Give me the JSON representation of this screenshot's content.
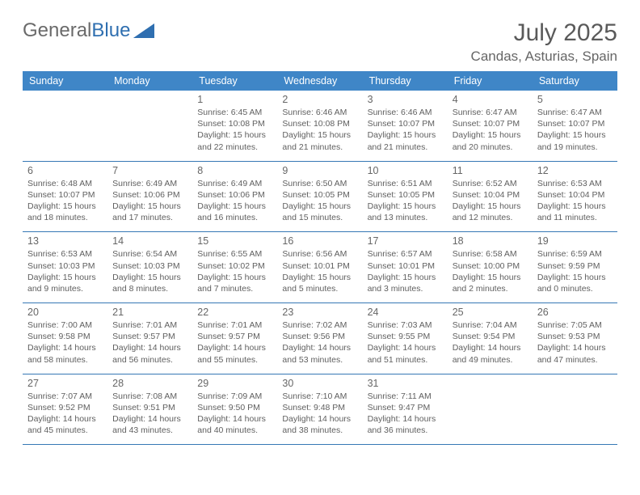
{
  "brand": {
    "text_a": "General",
    "text_b": "Blue",
    "text_a_color": "#6a6a6a",
    "text_b_color": "#2f6fb0",
    "shape_color": "#2f6fb0"
  },
  "title": "July 2025",
  "location": "Candas, Asturias, Spain",
  "colors": {
    "header_bg": "#3f86c7",
    "header_text": "#ffffff",
    "divider": "#3678b5",
    "body_text": "#5f5f5f",
    "page_bg": "#ffffff"
  },
  "day_names": [
    "Sunday",
    "Monday",
    "Tuesday",
    "Wednesday",
    "Thursday",
    "Friday",
    "Saturday"
  ],
  "weeks": [
    [
      {
        "n": "",
        "sr": "",
        "ss": "",
        "dl": ""
      },
      {
        "n": "",
        "sr": "",
        "ss": "",
        "dl": ""
      },
      {
        "n": "1",
        "sr": "6:45 AM",
        "ss": "10:08 PM",
        "dl": "15 hours and 22 minutes."
      },
      {
        "n": "2",
        "sr": "6:46 AM",
        "ss": "10:08 PM",
        "dl": "15 hours and 21 minutes."
      },
      {
        "n": "3",
        "sr": "6:46 AM",
        "ss": "10:07 PM",
        "dl": "15 hours and 21 minutes."
      },
      {
        "n": "4",
        "sr": "6:47 AM",
        "ss": "10:07 PM",
        "dl": "15 hours and 20 minutes."
      },
      {
        "n": "5",
        "sr": "6:47 AM",
        "ss": "10:07 PM",
        "dl": "15 hours and 19 minutes."
      }
    ],
    [
      {
        "n": "6",
        "sr": "6:48 AM",
        "ss": "10:07 PM",
        "dl": "15 hours and 18 minutes."
      },
      {
        "n": "7",
        "sr": "6:49 AM",
        "ss": "10:06 PM",
        "dl": "15 hours and 17 minutes."
      },
      {
        "n": "8",
        "sr": "6:49 AM",
        "ss": "10:06 PM",
        "dl": "15 hours and 16 minutes."
      },
      {
        "n": "9",
        "sr": "6:50 AM",
        "ss": "10:05 PM",
        "dl": "15 hours and 15 minutes."
      },
      {
        "n": "10",
        "sr": "6:51 AM",
        "ss": "10:05 PM",
        "dl": "15 hours and 13 minutes."
      },
      {
        "n": "11",
        "sr": "6:52 AM",
        "ss": "10:04 PM",
        "dl": "15 hours and 12 minutes."
      },
      {
        "n": "12",
        "sr": "6:53 AM",
        "ss": "10:04 PM",
        "dl": "15 hours and 11 minutes."
      }
    ],
    [
      {
        "n": "13",
        "sr": "6:53 AM",
        "ss": "10:03 PM",
        "dl": "15 hours and 9 minutes."
      },
      {
        "n": "14",
        "sr": "6:54 AM",
        "ss": "10:03 PM",
        "dl": "15 hours and 8 minutes."
      },
      {
        "n": "15",
        "sr": "6:55 AM",
        "ss": "10:02 PM",
        "dl": "15 hours and 7 minutes."
      },
      {
        "n": "16",
        "sr": "6:56 AM",
        "ss": "10:01 PM",
        "dl": "15 hours and 5 minutes."
      },
      {
        "n": "17",
        "sr": "6:57 AM",
        "ss": "10:01 PM",
        "dl": "15 hours and 3 minutes."
      },
      {
        "n": "18",
        "sr": "6:58 AM",
        "ss": "10:00 PM",
        "dl": "15 hours and 2 minutes."
      },
      {
        "n": "19",
        "sr": "6:59 AM",
        "ss": "9:59 PM",
        "dl": "15 hours and 0 minutes."
      }
    ],
    [
      {
        "n": "20",
        "sr": "7:00 AM",
        "ss": "9:58 PM",
        "dl": "14 hours and 58 minutes."
      },
      {
        "n": "21",
        "sr": "7:01 AM",
        "ss": "9:57 PM",
        "dl": "14 hours and 56 minutes."
      },
      {
        "n": "22",
        "sr": "7:01 AM",
        "ss": "9:57 PM",
        "dl": "14 hours and 55 minutes."
      },
      {
        "n": "23",
        "sr": "7:02 AM",
        "ss": "9:56 PM",
        "dl": "14 hours and 53 minutes."
      },
      {
        "n": "24",
        "sr": "7:03 AM",
        "ss": "9:55 PM",
        "dl": "14 hours and 51 minutes."
      },
      {
        "n": "25",
        "sr": "7:04 AM",
        "ss": "9:54 PM",
        "dl": "14 hours and 49 minutes."
      },
      {
        "n": "26",
        "sr": "7:05 AM",
        "ss": "9:53 PM",
        "dl": "14 hours and 47 minutes."
      }
    ],
    [
      {
        "n": "27",
        "sr": "7:07 AM",
        "ss": "9:52 PM",
        "dl": "14 hours and 45 minutes."
      },
      {
        "n": "28",
        "sr": "7:08 AM",
        "ss": "9:51 PM",
        "dl": "14 hours and 43 minutes."
      },
      {
        "n": "29",
        "sr": "7:09 AM",
        "ss": "9:50 PM",
        "dl": "14 hours and 40 minutes."
      },
      {
        "n": "30",
        "sr": "7:10 AM",
        "ss": "9:48 PM",
        "dl": "14 hours and 38 minutes."
      },
      {
        "n": "31",
        "sr": "7:11 AM",
        "ss": "9:47 PM",
        "dl": "14 hours and 36 minutes."
      },
      {
        "n": "",
        "sr": "",
        "ss": "",
        "dl": ""
      },
      {
        "n": "",
        "sr": "",
        "ss": "",
        "dl": ""
      }
    ]
  ],
  "labels": {
    "sunrise": "Sunrise:",
    "sunset": "Sunset:",
    "daylight": "Daylight:"
  }
}
